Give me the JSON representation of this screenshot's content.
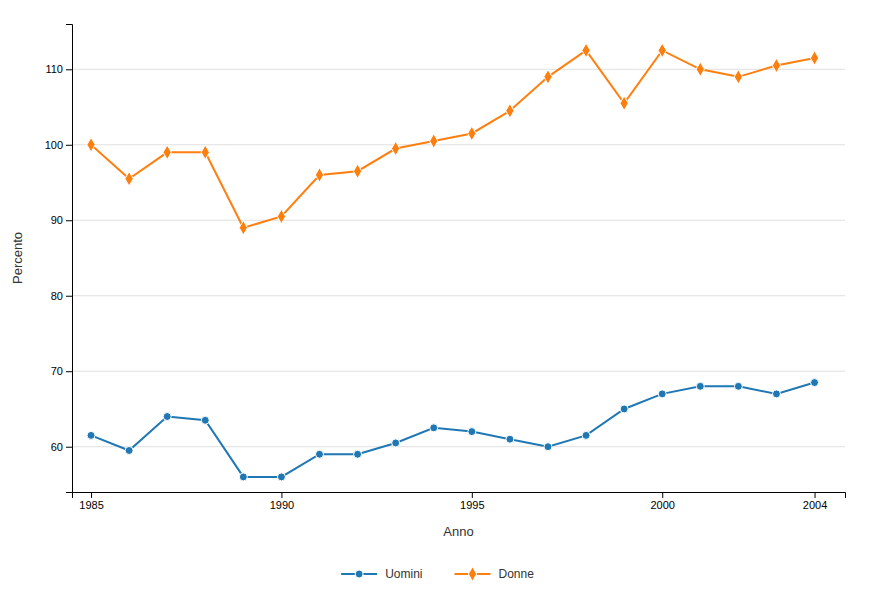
{
  "chart_data": {
    "type": "line",
    "x": [
      1985,
      1986,
      1987,
      1988,
      1989,
      1990,
      1991,
      1992,
      1993,
      1994,
      1995,
      1996,
      1997,
      1998,
      1999,
      2000,
      2001,
      2002,
      2003,
      2004
    ],
    "series": [
      {
        "name": "Uomini",
        "marker": "circle",
        "values": [
          61.5,
          59.5,
          64.0,
          63.5,
          56.0,
          56.0,
          59.0,
          59.0,
          60.5,
          62.5,
          62.0,
          61.0,
          60.0,
          61.5,
          65.0,
          67.0,
          68.0,
          68.0,
          67.0,
          68.5
        ]
      },
      {
        "name": "Donne",
        "marker": "diamond",
        "values": [
          100.0,
          95.5,
          99.0,
          99.0,
          89.0,
          90.5,
          96.0,
          96.5,
          99.5,
          100.5,
          101.5,
          104.5,
          109.0,
          112.5,
          105.5,
          112.5,
          110.0,
          109.0,
          110.5,
          111.5
        ]
      }
    ],
    "xlabel": "Anno",
    "ylabel": "Percento",
    "xlim": [
      1984.5,
      2004.8
    ],
    "ylim": [
      54,
      116
    ],
    "xticks": [
      1985,
      1990,
      1995,
      2000,
      2004
    ],
    "yticks": [
      60,
      70,
      80,
      90,
      100,
      110
    ],
    "grid": "y",
    "legend": "bottom"
  }
}
